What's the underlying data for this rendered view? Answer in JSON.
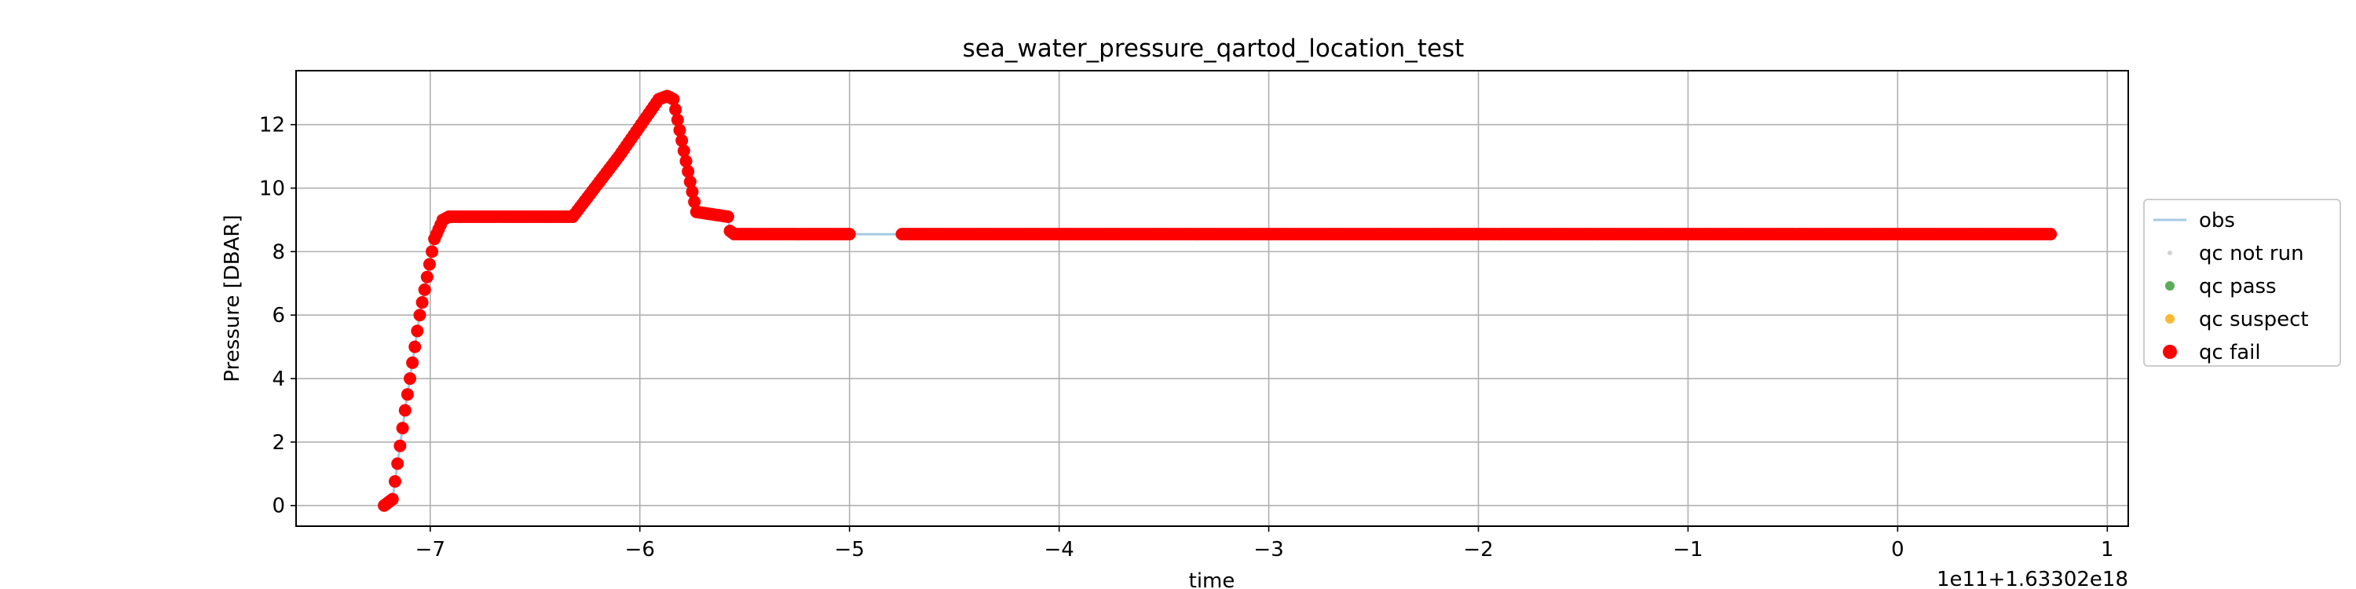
{
  "chart_data": {
    "type": "scatter",
    "title": "sea_water_pressure_qartod_location_test",
    "xlabel": "time",
    "ylabel": "Pressure [DBAR]",
    "x_offset_text": "1e11+1.63302e18",
    "xlim": [
      -7.64,
      1.1
    ],
    "ylim": [
      -0.65,
      13.7
    ],
    "x_ticks": [
      -7,
      -6,
      -5,
      -4,
      -3,
      -2,
      -1,
      0,
      1
    ],
    "x_tick_labels": [
      "−7",
      "−6",
      "−5",
      "−4",
      "−3",
      "−2",
      "−1",
      "0",
      "1"
    ],
    "y_ticks": [
      0,
      2,
      4,
      6,
      8,
      10,
      12
    ],
    "y_tick_labels": [
      "0",
      "2",
      "4",
      "6",
      "8",
      "10",
      "12"
    ],
    "grid": true,
    "legend": {
      "placement": "center-right-outside",
      "entries": [
        {
          "label": "obs",
          "kind": "line",
          "color": "#a6cbe3"
        },
        {
          "label": "qc not run",
          "kind": "dot",
          "color": "#d3d3d3"
        },
        {
          "label": "qc pass",
          "kind": "dot",
          "color": "#5bab5b"
        },
        {
          "label": "qc suspect",
          "kind": "dot",
          "color": "#fcb830"
        },
        {
          "label": "qc fail",
          "kind": "dot",
          "color": "#ff0000"
        }
      ]
    },
    "series": [
      {
        "name": "obs",
        "kind": "line",
        "color": "#a6cbe3",
        "x": [
          -7.22,
          -7.18,
          -7.12,
          -7.05,
          -6.98,
          -6.94,
          -6.91,
          -6.6,
          -6.35,
          -6.32,
          -6.1,
          -5.91,
          -5.87,
          -5.84,
          -5.8,
          -5.76,
          -5.73,
          -5.58,
          -5.57,
          -5.55,
          -5.0,
          -4.75,
          0.73
        ],
        "y": [
          0.0,
          0.2,
          3.0,
          6.0,
          8.4,
          9.0,
          9.1,
          9.1,
          9.1,
          9.1,
          11.0,
          12.8,
          12.9,
          12.8,
          11.5,
          10.2,
          9.25,
          9.1,
          8.65,
          8.55,
          8.55,
          8.55,
          8.55
        ]
      },
      {
        "name": "qc fail",
        "kind": "points",
        "color": "#ff0000",
        "x": [
          -7.22,
          -7.18,
          -7.12,
          -7.05,
          -6.98,
          -6.94,
          -6.91,
          -6.32,
          -6.1,
          -5.91,
          -5.87,
          -5.84,
          -5.8,
          -5.76,
          -5.73,
          -5.58,
          -5.57,
          -5.55,
          -5.0,
          -4.75,
          0.73
        ],
        "y": [
          0.0,
          0.2,
          3.0,
          6.0,
          8.4,
          9.0,
          9.1,
          9.1,
          11.0,
          12.8,
          12.9,
          12.8,
          11.5,
          10.2,
          9.25,
          9.1,
          8.65,
          8.55,
          8.55,
          8.55,
          8.55
        ],
        "gaps_after": [
          -5.0
        ]
      }
    ]
  }
}
